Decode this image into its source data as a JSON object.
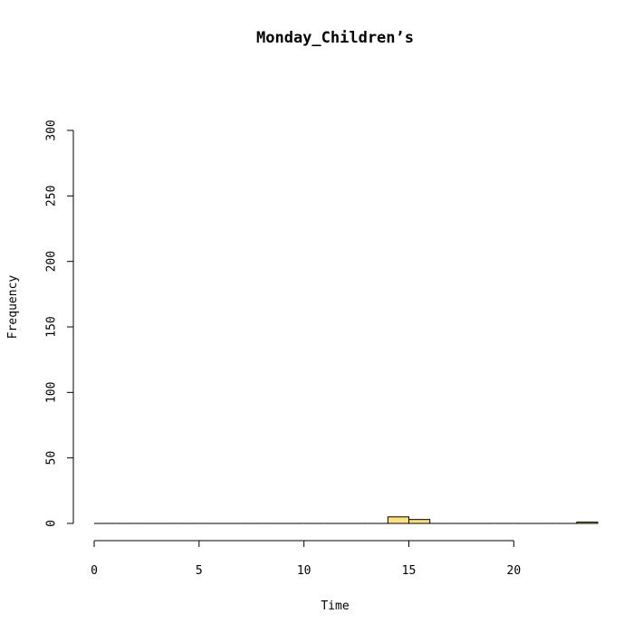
{
  "chart_data": {
    "type": "bar",
    "title": "Monday_Children’s",
    "xlabel": "Time",
    "ylabel": "Frequency",
    "xlim": [
      0,
      24
    ],
    "ylim": [
      0,
      300
    ],
    "x_ticks": [
      0,
      5,
      10,
      15,
      20
    ],
    "y_ticks": [
      0,
      50,
      100,
      150,
      200,
      250,
      300
    ],
    "bin_width": 1,
    "bins": [
      {
        "start": 0,
        "end": 1,
        "value": 0
      },
      {
        "start": 1,
        "end": 2,
        "value": 0
      },
      {
        "start": 2,
        "end": 3,
        "value": 0
      },
      {
        "start": 3,
        "end": 4,
        "value": 0
      },
      {
        "start": 4,
        "end": 5,
        "value": 0
      },
      {
        "start": 5,
        "end": 6,
        "value": 0
      },
      {
        "start": 6,
        "end": 7,
        "value": 0
      },
      {
        "start": 7,
        "end": 8,
        "value": 0
      },
      {
        "start": 8,
        "end": 9,
        "value": 0
      },
      {
        "start": 9,
        "end": 10,
        "value": 0
      },
      {
        "start": 10,
        "end": 11,
        "value": 0
      },
      {
        "start": 11,
        "end": 12,
        "value": 0
      },
      {
        "start": 12,
        "end": 13,
        "value": 0
      },
      {
        "start": 13,
        "end": 14,
        "value": 0
      },
      {
        "start": 14,
        "end": 15,
        "value": 5
      },
      {
        "start": 15,
        "end": 16,
        "value": 3
      },
      {
        "start": 16,
        "end": 17,
        "value": 0
      },
      {
        "start": 17,
        "end": 18,
        "value": 0
      },
      {
        "start": 18,
        "end": 19,
        "value": 0
      },
      {
        "start": 19,
        "end": 20,
        "value": 0
      },
      {
        "start": 20,
        "end": 21,
        "value": 0
      },
      {
        "start": 21,
        "end": 22,
        "value": 0
      },
      {
        "start": 22,
        "end": 23,
        "value": 0
      },
      {
        "start": 23,
        "end": 24,
        "value": 1
      }
    ],
    "bar_color": "#ffe082",
    "grid": false
  }
}
